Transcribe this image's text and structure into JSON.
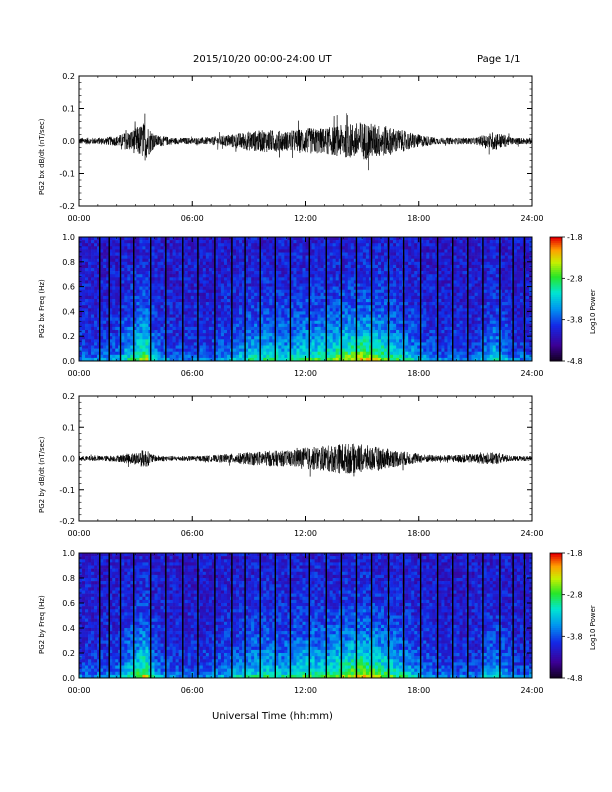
{
  "header": {
    "title": "2015/10/20  00:00-24:00 UT",
    "page": "Page 1/1"
  },
  "footer": {
    "xlabel": "Universal Time (hh:mm)"
  },
  "colorbar": {
    "label": "Log10 Power",
    "ticks": [
      "-1.8",
      "-2.8",
      "-3.8",
      "-4.8"
    ]
  },
  "chart_data": [
    {
      "type": "line",
      "ylabel": "PG2 bx dB/dt (nT/sec)",
      "xlabel": "",
      "xticks": [
        "00:00",
        "06:00",
        "12:00",
        "18:00",
        "24:00"
      ],
      "xlim": [
        0,
        24
      ],
      "ylim": [
        -0.2,
        0.2
      ],
      "yticks": [
        "0.2",
        "0.1",
        "0.0",
        "-0.1",
        "-0.2"
      ],
      "envelope": {
        "hour": [
          0,
          1,
          2,
          3,
          3.5,
          4,
          5,
          6,
          7,
          8,
          9,
          10,
          11,
          12,
          13,
          14,
          15,
          16,
          17,
          18,
          19,
          20,
          21,
          22,
          23,
          24
        ],
        "amp": [
          0.01,
          0.01,
          0.015,
          0.04,
          0.06,
          0.02,
          0.01,
          0.01,
          0.012,
          0.02,
          0.03,
          0.035,
          0.03,
          0.04,
          0.04,
          0.05,
          0.06,
          0.05,
          0.035,
          0.02,
          0.01,
          0.01,
          0.01,
          0.03,
          0.01,
          0.01
        ]
      }
    },
    {
      "type": "heatmap",
      "ylabel": "PG2 bx Freq (Hz)",
      "xticks": [
        "00:00",
        "06:00",
        "12:00",
        "18:00",
        "24:00"
      ],
      "yticks": [
        "1.0",
        "0.8",
        "0.6",
        "0.4",
        "0.2",
        "0.0"
      ],
      "ylim": [
        0,
        1
      ],
      "zlim": [
        -4.8,
        -1.8
      ]
    },
    {
      "type": "line",
      "ylabel": "PG2 by dB/dt (nT/sec)",
      "xlabel": "",
      "xticks": [
        "00:00",
        "06:00",
        "12:00",
        "18:00",
        "24:00"
      ],
      "xlim": [
        0,
        24
      ],
      "ylim": [
        -0.2,
        0.2
      ],
      "yticks": [
        "0.2",
        "0.1",
        "0.0",
        "-0.1",
        "-0.2"
      ],
      "envelope": {
        "hour": [
          0,
          1,
          2,
          3,
          3.5,
          4,
          5,
          6,
          7,
          8,
          9,
          10,
          11,
          12,
          13,
          14,
          15,
          16,
          17,
          18,
          19,
          20,
          21,
          22,
          23,
          24
        ],
        "amp": [
          0.008,
          0.008,
          0.01,
          0.02,
          0.03,
          0.01,
          0.008,
          0.008,
          0.01,
          0.015,
          0.02,
          0.025,
          0.025,
          0.035,
          0.04,
          0.05,
          0.045,
          0.035,
          0.025,
          0.015,
          0.01,
          0.012,
          0.015,
          0.02,
          0.008,
          0.008
        ]
      }
    },
    {
      "type": "heatmap",
      "ylabel": "PG2 by Freq (Hz)",
      "xticks": [
        "00:00",
        "06:00",
        "12:00",
        "18:00",
        "24:00"
      ],
      "yticks": [
        "1.0",
        "0.8",
        "0.6",
        "0.4",
        "0.2",
        "0.0"
      ],
      "ylim": [
        0,
        1
      ],
      "zlim": [
        -4.8,
        -1.8
      ]
    }
  ]
}
